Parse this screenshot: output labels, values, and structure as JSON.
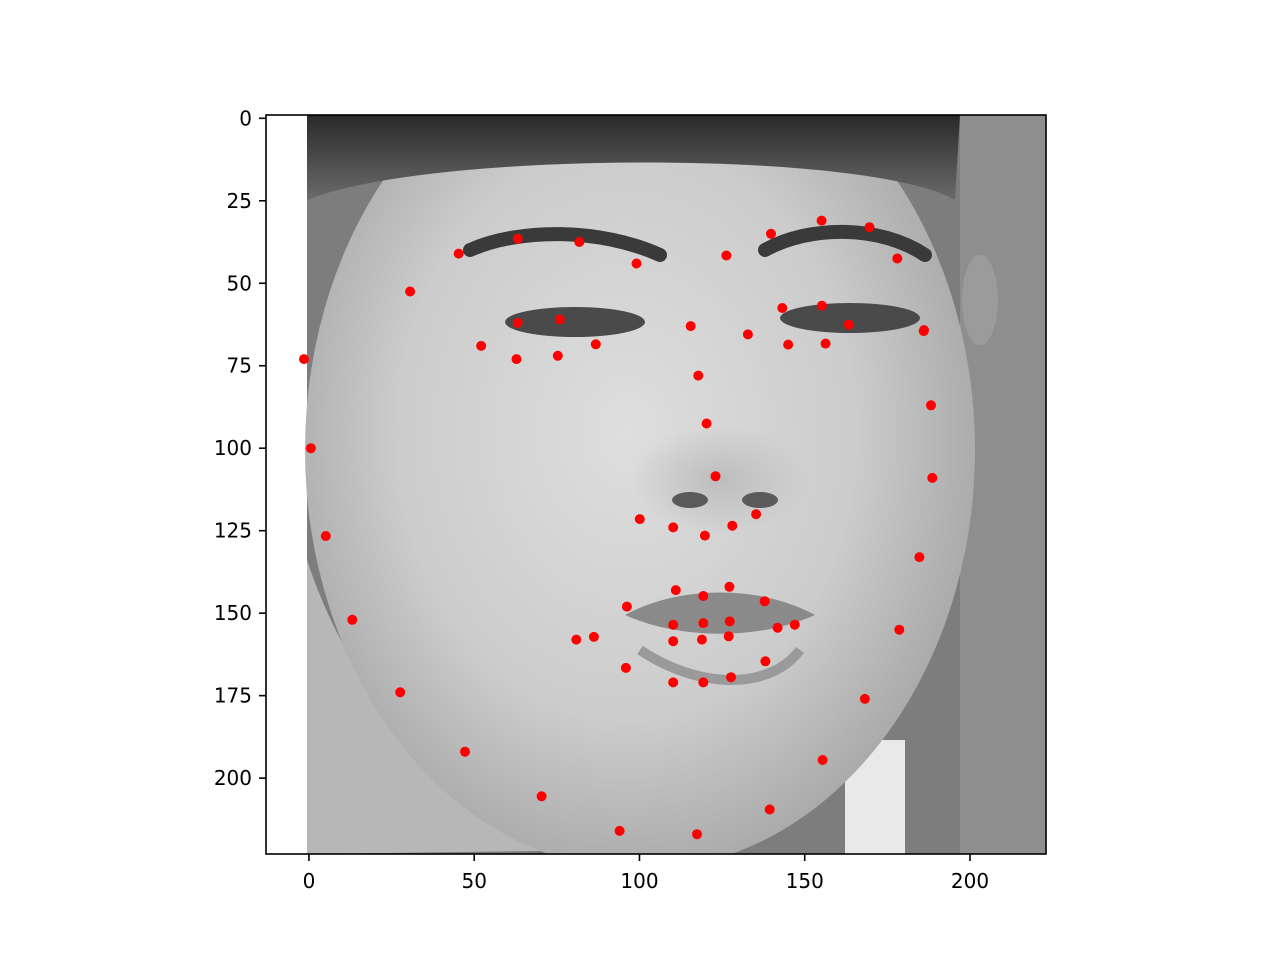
{
  "chart_data": {
    "type": "scatter",
    "title": "",
    "xlabel": "",
    "ylabel": "",
    "background_image": "grayscale-face-photo",
    "xlim": [
      -13,
      223
    ],
    "ylim": [
      223,
      -1
    ],
    "y_axis_inverted": true,
    "grid": false,
    "marker_color": "#ff0000",
    "x_ticks": [
      0,
      50,
      100,
      150,
      200
    ],
    "y_ticks": [
      0,
      25,
      50,
      75,
      100,
      125,
      150,
      175,
      200
    ],
    "x_tick_labels": [
      "0",
      "50",
      "100",
      "150",
      "200"
    ],
    "y_tick_labels": [
      "0",
      "25",
      "50",
      "75",
      "100",
      "125",
      "150",
      "175",
      "200"
    ],
    "series": [
      {
        "points": [
          {
            "x": -1.5,
            "y": 73
          },
          {
            "x": 0.6,
            "y": 100
          },
          {
            "x": 5.1,
            "y": 126.6
          },
          {
            "x": 13.1,
            "y": 152
          },
          {
            "x": 27.6,
            "y": 174
          },
          {
            "x": 47.2,
            "y": 192
          },
          {
            "x": 70.4,
            "y": 205.5
          },
          {
            "x": 94.0,
            "y": 216
          },
          {
            "x": 117.4,
            "y": 217
          },
          {
            "x": 139.4,
            "y": 209.5
          },
          {
            "x": 155.4,
            "y": 194.5
          },
          {
            "x": 168.2,
            "y": 176
          },
          {
            "x": 178.6,
            "y": 155
          },
          {
            "x": 184.7,
            "y": 133
          },
          {
            "x": 188.6,
            "y": 109
          },
          {
            "x": 188.2,
            "y": 87
          },
          {
            "x": 186.0,
            "y": 64.5
          },
          {
            "x": 30.6,
            "y": 52.5
          },
          {
            "x": 45.3,
            "y": 41
          },
          {
            "x": 63.2,
            "y": 36.5
          },
          {
            "x": 81.8,
            "y": 37.5
          },
          {
            "x": 99.1,
            "y": 44
          },
          {
            "x": 139.8,
            "y": 35
          },
          {
            "x": 155.1,
            "y": 31
          },
          {
            "x": 169.6,
            "y": 33
          },
          {
            "x": 178.0,
            "y": 42.5
          },
          {
            "x": 126.3,
            "y": 41.6
          },
          {
            "x": 115.5,
            "y": 63
          },
          {
            "x": 117.8,
            "y": 78
          },
          {
            "x": 120.3,
            "y": 92.5
          },
          {
            "x": 123.0,
            "y": 108.5
          },
          {
            "x": 100.1,
            "y": 121.5
          },
          {
            "x": 110.2,
            "y": 124
          },
          {
            "x": 119.8,
            "y": 126.5
          },
          {
            "x": 128.1,
            "y": 123.5
          },
          {
            "x": 135.3,
            "y": 120
          },
          {
            "x": 52.1,
            "y": 69
          },
          {
            "x": 63.2,
            "y": 62
          },
          {
            "x": 75.9,
            "y": 61
          },
          {
            "x": 86.8,
            "y": 68.5
          },
          {
            "x": 75.3,
            "y": 72
          },
          {
            "x": 62.8,
            "y": 73
          },
          {
            "x": 143.2,
            "y": 57.5
          },
          {
            "x": 155.2,
            "y": 56.8
          },
          {
            "x": 163.3,
            "y": 62.6
          },
          {
            "x": 186.1,
            "y": 64.2
          },
          {
            "x": 156.3,
            "y": 68.3
          },
          {
            "x": 145.0,
            "y": 68.6
          },
          {
            "x": 132.8,
            "y": 65.5
          },
          {
            "x": 80.9,
            "y": 158
          },
          {
            "x": 96.2,
            "y": 148
          },
          {
            "x": 111.0,
            "y": 143
          },
          {
            "x": 119.3,
            "y": 144.8
          },
          {
            "x": 127.2,
            "y": 142
          },
          {
            "x": 137.9,
            "y": 146.4
          },
          {
            "x": 147.0,
            "y": 153.5
          },
          {
            "x": 141.8,
            "y": 154.4
          },
          {
            "x": 138.1,
            "y": 164.6
          },
          {
            "x": 127.7,
            "y": 169.4
          },
          {
            "x": 119.3,
            "y": 171
          },
          {
            "x": 110.2,
            "y": 171
          },
          {
            "x": 95.9,
            "y": 166.6
          },
          {
            "x": 86.2,
            "y": 157.2
          },
          {
            "x": 110.2,
            "y": 153.5
          },
          {
            "x": 119.3,
            "y": 153
          },
          {
            "x": 127.3,
            "y": 152.5
          },
          {
            "x": 127.0,
            "y": 157
          },
          {
            "x": 118.9,
            "y": 158
          },
          {
            "x": 110.2,
            "y": 158.5
          }
        ]
      }
    ]
  }
}
